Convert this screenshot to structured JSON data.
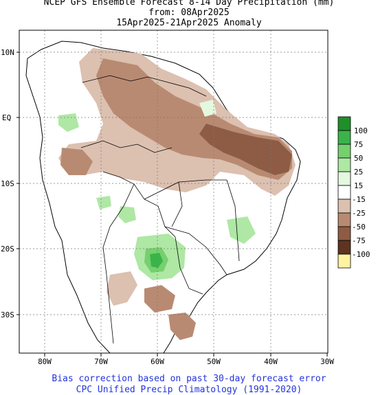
{
  "title": {
    "line1": "NCEP GFS Ensemble Forecast 8-14 Day Precipitation (mm)",
    "line2": "from: 08Apr2025",
    "line3": "15Apr2025-21Apr2025 Anomaly"
  },
  "axes": {
    "lat_labels": [
      "10N",
      "EQ",
      "10S",
      "20S",
      "30S"
    ],
    "lon_labels": [
      "80W",
      "70W",
      "60W",
      "50W",
      "40W",
      "30W"
    ],
    "lat_range": [
      -36,
      14
    ],
    "lon_range": [
      -85,
      -30
    ],
    "grid": "dotted"
  },
  "legend": {
    "labels": [
      "100",
      "75",
      "50",
      "25",
      "15",
      "-15",
      "-25",
      "-50",
      "-75",
      "-100"
    ],
    "colors": [
      "#1f8f2a",
      "#3ab44a",
      "#76d06e",
      "#aee8a4",
      "#e4f7df",
      "#ffffff",
      "#dcc0b0",
      "#b98a72",
      "#8e5c44",
      "#5e3320",
      "#fff3a0"
    ]
  },
  "footer": {
    "line1": "Bias correction based on past 30-day forecast error",
    "line2": "CPC Unified Precip Climatology (1991-2020)"
  }
}
